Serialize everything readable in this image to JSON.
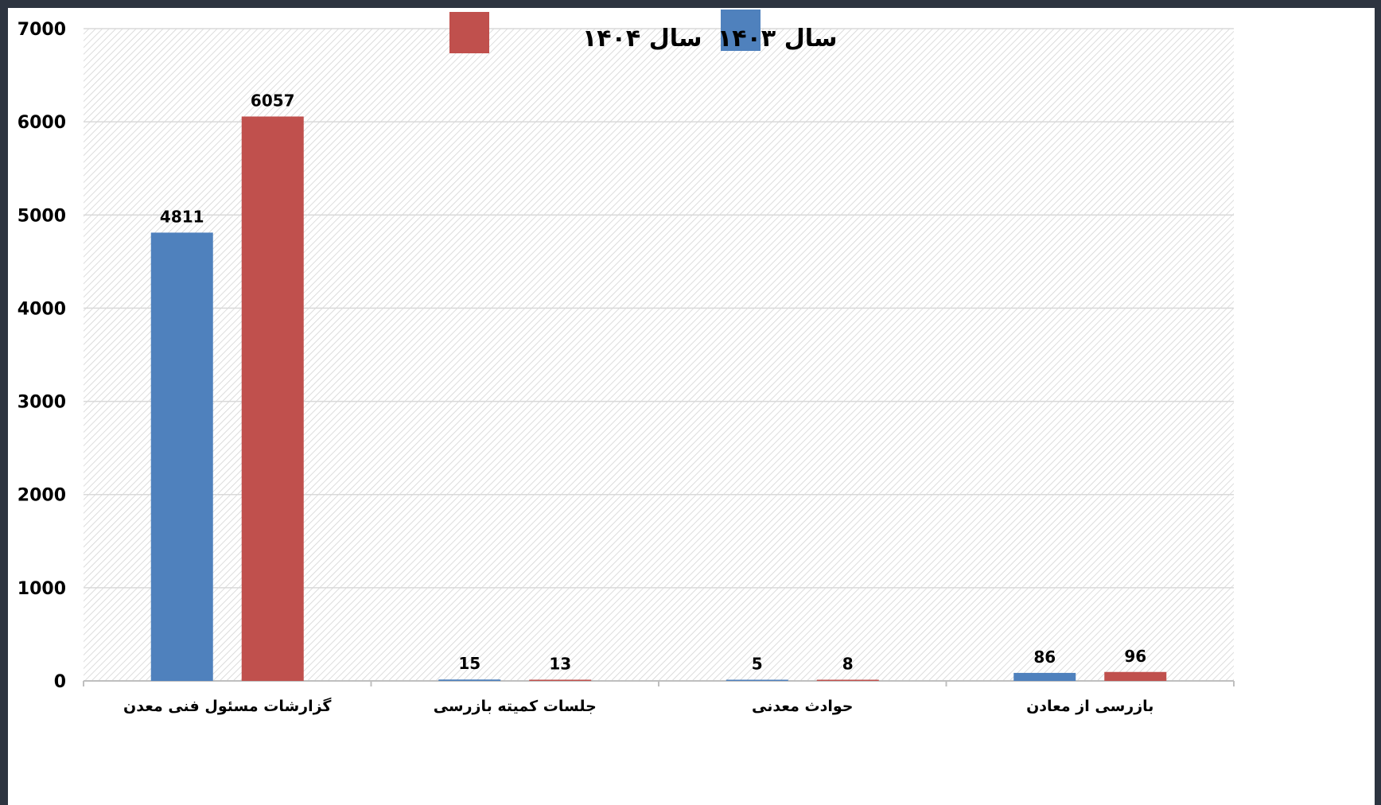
{
  "chart_data": {
    "type": "bar",
    "categories": [
      "گزارشات مسئول فنی معدن",
      "جلسات کمیته بازرسی",
      "حوادث معدنی",
      "بازرسی از معادن"
    ],
    "series": [
      {
        "name": "سال ۱۴۰۳",
        "color": "#4f81bd",
        "values": [
          4811,
          15,
          5,
          86
        ]
      },
      {
        "name": "سال ۱۴۰۴",
        "color": "#c0504d",
        "values": [
          6057,
          13,
          8,
          96
        ]
      }
    ],
    "ylim": [
      0,
      7000
    ],
    "yticks": [
      0,
      1000,
      2000,
      3000,
      4000,
      5000,
      6000,
      7000
    ],
    "grid": true,
    "legend": "top",
    "data_labels": true,
    "title": "",
    "xlabel": "",
    "ylabel": ""
  }
}
